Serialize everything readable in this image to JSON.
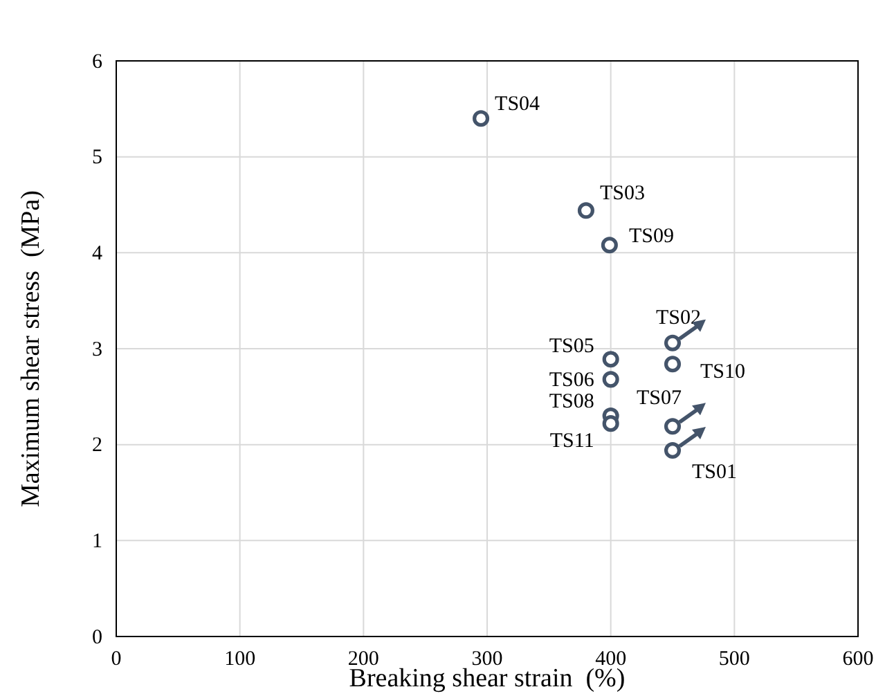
{
  "chart_data": {
    "type": "scatter",
    "xlabel": "Breaking shear strain  (%)",
    "ylabel": "Maximum shear stress  (MPa)",
    "xlim": [
      0,
      600
    ],
    "xticks": [
      0,
      100,
      200,
      300,
      400,
      500,
      600
    ],
    "ylim": [
      0,
      6
    ],
    "yticks": [
      0,
      1,
      2,
      3,
      4,
      5,
      6
    ],
    "grid": true,
    "marker": "circle",
    "series": [
      {
        "color": "#44546a",
        "x": [
          295,
          380,
          399,
          450,
          400,
          400,
          450,
          400,
          400,
          450,
          450
        ],
        "values": [
          5.4,
          4.44,
          4.08,
          3.06,
          2.89,
          2.68,
          2.84,
          2.3,
          2.22,
          2.19,
          1.94
        ]
      }
    ],
    "annotations": [
      {
        "text": "TS04",
        "x": 295,
        "y": 5.4
      },
      {
        "text": "TS03",
        "x": 380,
        "y": 4.44
      },
      {
        "text": "TS09",
        "x": 399,
        "y": 4.08
      },
      {
        "text": "TS02",
        "x": 450,
        "y": 3.06
      },
      {
        "text": "TS05",
        "x": 400,
        "y": 2.89
      },
      {
        "text": "TS06",
        "x": 400,
        "y": 2.68
      },
      {
        "text": "TS10",
        "x": 450,
        "y": 2.84
      },
      {
        "text": "TS08",
        "x": 400,
        "y": 2.3
      },
      {
        "text": "TS11",
        "x": 400,
        "y": 2.22
      },
      {
        "text": "TS07",
        "x": 450,
        "y": 2.19
      },
      {
        "text": "TS01",
        "x": 450,
        "y": 1.94
      }
    ]
  }
}
